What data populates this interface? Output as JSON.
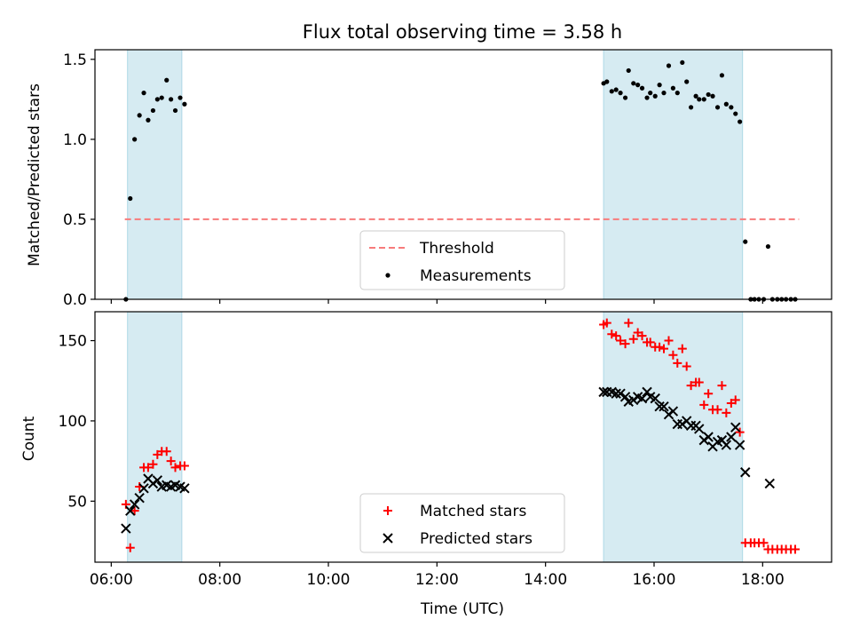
{
  "chart_data": [
    {
      "type": "scatter",
      "title": "Flux total observing time = 3.58 h",
      "xlabel": "",
      "ylabel": "Matched/Predicted stars",
      "xlim": [
        5.7,
        19.27
      ],
      "ylim": [
        0,
        1.56
      ],
      "yticks": [
        0.0,
        0.5,
        1.0,
        1.5
      ],
      "ytick_labels": [
        "0.0",
        "0.5",
        "1.0",
        "1.5"
      ],
      "xticks": [
        6,
        8,
        10,
        12,
        14,
        16,
        18
      ],
      "shaded_intervals": [
        [
          6.3,
          7.3
        ],
        [
          15.07,
          17.63
        ]
      ],
      "threshold": {
        "name": "Threshold",
        "y": 0.5,
        "x_range": [
          6.25,
          18.67
        ],
        "color": "#f77b7b"
      },
      "series": [
        {
          "name": "Measurements",
          "marker": "dot",
          "color": "#000000",
          "x": [
            6.27,
            6.35,
            6.43,
            6.52,
            6.6,
            6.68,
            6.77,
            6.85,
            6.93,
            7.02,
            7.1,
            7.18,
            7.27,
            7.35,
            15.07,
            15.13,
            15.22,
            15.3,
            15.38,
            15.47,
            15.53,
            15.62,
            15.7,
            15.78,
            15.87,
            15.93,
            16.02,
            16.1,
            16.18,
            16.27,
            16.35,
            16.43,
            16.52,
            16.6,
            16.68,
            16.77,
            16.83,
            16.92,
            17.0,
            17.08,
            17.17,
            17.25,
            17.33,
            17.42,
            17.5,
            17.58,
            17.68,
            17.78,
            17.85,
            17.93,
            18.02,
            18.1,
            18.18,
            18.27,
            18.35,
            18.43,
            18.52,
            18.6
          ],
          "y": [
            0.0,
            0.63,
            1.0,
            1.15,
            1.29,
            1.12,
            1.18,
            1.25,
            1.26,
            1.37,
            1.25,
            1.18,
            1.26,
            1.22,
            1.35,
            1.36,
            1.3,
            1.31,
            1.29,
            1.26,
            1.43,
            1.35,
            1.34,
            1.32,
            1.26,
            1.29,
            1.27,
            1.34,
            1.29,
            1.46,
            1.32,
            1.29,
            1.48,
            1.36,
            1.2,
            1.27,
            1.25,
            1.25,
            1.28,
            1.27,
            1.2,
            1.4,
            1.22,
            1.2,
            1.16,
            1.11,
            0.36,
            0.0,
            0.0,
            0.0,
            0.0,
            0.33,
            0.0,
            0.0,
            0.0,
            0.0,
            0.0,
            0.0
          ]
        }
      ],
      "legend": {
        "location": "lower-center",
        "entries": [
          "Threshold",
          "Measurements"
        ]
      }
    },
    {
      "type": "scatter",
      "title": "",
      "xlabel": "Time (UTC)",
      "ylabel": "Count",
      "xlim": [
        5.7,
        19.27
      ],
      "ylim": [
        12,
        168
      ],
      "yticks": [
        50,
        100,
        150
      ],
      "ytick_labels": [
        "50",
        "100",
        "150"
      ],
      "xticks": [
        6,
        8,
        10,
        12,
        14,
        16,
        18
      ],
      "xtick_labels": [
        "06:00",
        "08:00",
        "10:00",
        "12:00",
        "14:00",
        "16:00",
        "18:00"
      ],
      "shaded_intervals": [
        [
          6.3,
          7.3
        ],
        [
          15.07,
          17.63
        ]
      ],
      "series": [
        {
          "name": "Matched stars",
          "marker": "plus",
          "color": "#ff0000",
          "x": [
            6.27,
            6.35,
            6.43,
            6.52,
            6.6,
            6.68,
            6.77,
            6.85,
            6.93,
            7.02,
            7.1,
            7.18,
            7.27,
            7.35,
            15.07,
            15.13,
            15.22,
            15.3,
            15.38,
            15.47,
            15.53,
            15.62,
            15.7,
            15.78,
            15.87,
            15.93,
            16.02,
            16.1,
            16.18,
            16.27,
            16.35,
            16.43,
            16.52,
            16.6,
            16.68,
            16.77,
            16.83,
            16.92,
            17.0,
            17.08,
            17.17,
            17.25,
            17.33,
            17.42,
            17.5,
            17.58,
            17.68,
            17.78,
            17.85,
            17.93,
            18.02,
            18.1,
            18.18,
            18.27,
            18.35,
            18.43,
            18.52,
            18.6
          ],
          "y": [
            48,
            21,
            44,
            59,
            71,
            71,
            73,
            79,
            81,
            81,
            75,
            71,
            72,
            72,
            160,
            161,
            154,
            153,
            150,
            148,
            161,
            151,
            155,
            153,
            149,
            149,
            146,
            146,
            145,
            150,
            141,
            136,
            145,
            134,
            122,
            124,
            124,
            110,
            117,
            107,
            107,
            122,
            105,
            111,
            113,
            93,
            24,
            24,
            24,
            24,
            24,
            20,
            20,
            20,
            20,
            20,
            20,
            20
          ]
        },
        {
          "name": "Predicted stars",
          "marker": "x",
          "color": "#000000",
          "x": [
            6.27,
            6.35,
            6.43,
            6.52,
            6.6,
            6.68,
            6.77,
            6.85,
            6.93,
            7.02,
            7.1,
            7.18,
            7.27,
            7.35,
            15.07,
            15.13,
            15.22,
            15.3,
            15.38,
            15.47,
            15.53,
            15.62,
            15.7,
            15.78,
            15.87,
            15.93,
            16.02,
            16.1,
            16.18,
            16.27,
            16.35,
            16.43,
            16.52,
            16.6,
            16.68,
            16.77,
            16.83,
            16.92,
            17.0,
            17.08,
            17.17,
            17.25,
            17.33,
            17.42,
            17.5,
            17.58,
            17.68,
            18.13
          ],
          "y": [
            33,
            44,
            48,
            52,
            58,
            64,
            61,
            63,
            59,
            60,
            59,
            60,
            59,
            58,
            118,
            118,
            118,
            117,
            117,
            115,
            112,
            113,
            115,
            114,
            118,
            115,
            114,
            109,
            109,
            104,
            106,
            98,
            98,
            100,
            97,
            97,
            95,
            88,
            90,
            84,
            87,
            88,
            85,
            90,
            96,
            85,
            68,
            61
          ]
        }
      ],
      "legend": {
        "location": "lower-center",
        "entries": [
          "Matched stars",
          "Predicted stars"
        ]
      }
    }
  ]
}
